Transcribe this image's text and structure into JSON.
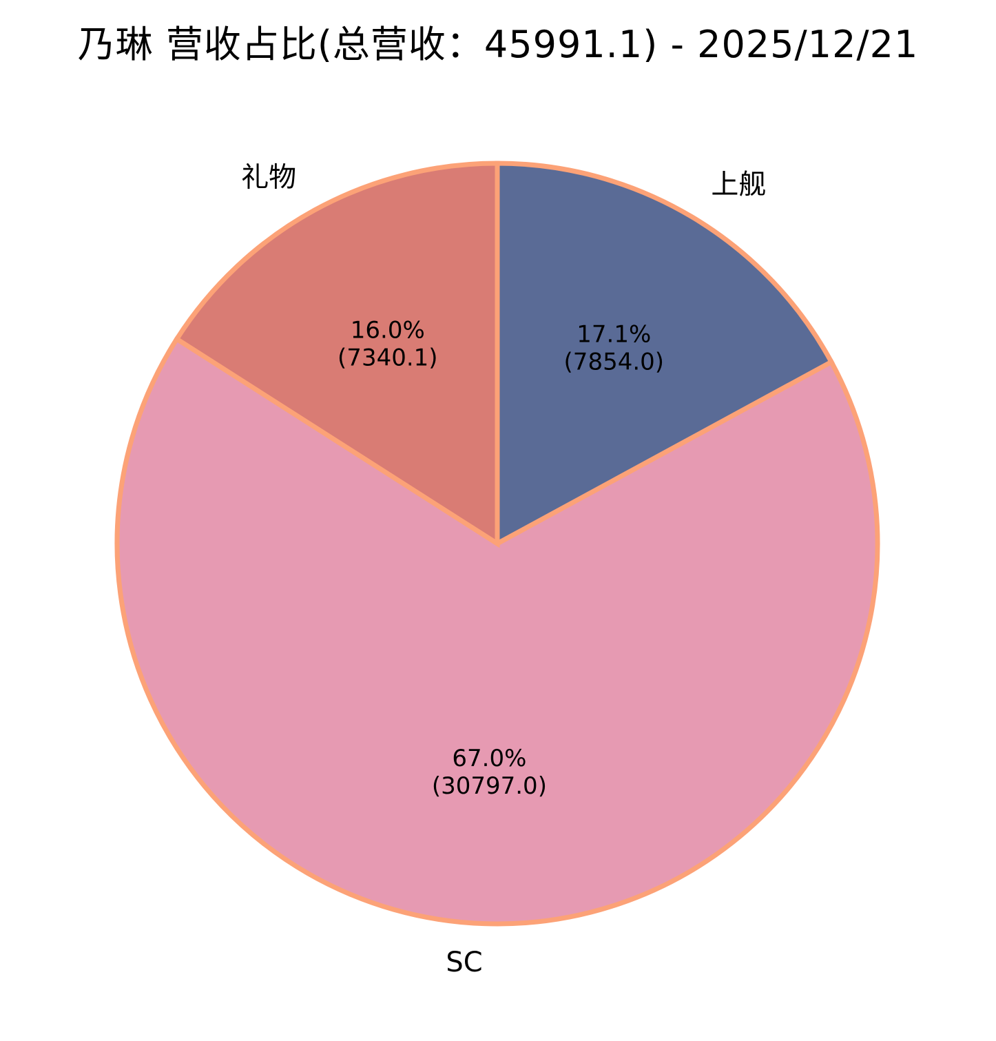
{
  "chart_data": {
    "type": "pie",
    "title": "乃琳 营收占比(总营收：45991.1) - 2025/12/21",
    "total": 45991.1,
    "date": "2025/12/21",
    "direction": "clockwise",
    "start_angle": "top",
    "legend_position": "none",
    "slices": [
      {
        "label": "上舰",
        "value": 7854.0,
        "percent": 17.1,
        "percent_label": "17.1%",
        "value_label": "(7854.0)",
        "color": "#5A6B96"
      },
      {
        "label": "SC",
        "value": 30797.0,
        "percent": 67.0,
        "percent_label": "67.0%",
        "value_label": "(30797.0)",
        "color": "#E69AB2"
      },
      {
        "label": "礼物",
        "value": 7340.1,
        "percent": 16.0,
        "percent_label": "16.0%",
        "value_label": "(7340.1)",
        "color": "#D97C74"
      }
    ],
    "edge_color": "#FCA277",
    "text_color": "#000000",
    "background": "#FFFFFF"
  }
}
